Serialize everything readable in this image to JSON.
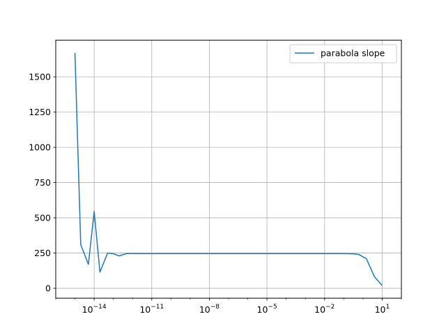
{
  "chart_data": {
    "type": "line",
    "title": "",
    "xlabel": "",
    "ylabel": "",
    "xscale": "log",
    "xlim": [
      1e-16,
      100.0
    ],
    "ylim": [
      -70,
      1760
    ],
    "grid": true,
    "legend_position": "upper right",
    "x_tick_labels": [
      {
        "value": 1e-14,
        "mantissa": "10",
        "exponent": "−14"
      },
      {
        "value": 1e-11,
        "mantissa": "10",
        "exponent": "−11"
      },
      {
        "value": 1e-08,
        "mantissa": "10",
        "exponent": "−8"
      },
      {
        "value": 1e-05,
        "mantissa": "10",
        "exponent": "−5"
      },
      {
        "value": 0.01,
        "mantissa": "10",
        "exponent": "−2"
      },
      {
        "value": 10,
        "mantissa": "10",
        "exponent": "1"
      }
    ],
    "y_tick_labels": [
      {
        "value": 0,
        "label": "0"
      },
      {
        "value": 250,
        "label": "250"
      },
      {
        "value": 500,
        "label": "500"
      },
      {
        "value": 750,
        "label": "750"
      },
      {
        "value": 1000,
        "label": "1000"
      },
      {
        "value": 1250,
        "label": "1250"
      },
      {
        "value": 1500,
        "label": "1500"
      }
    ],
    "series": [
      {
        "name": "parabola slope",
        "color": "#1f77b4",
        "x": [
          1e-15,
          2e-15,
          5e-15,
          1e-14,
          2e-14,
          5e-14,
          1e-13,
          2e-13,
          5e-13,
          1e-12,
          1e-11,
          1e-10,
          1e-09,
          1e-08,
          1e-07,
          1e-06,
          1e-05,
          0.0001,
          0.001,
          0.01,
          0.1,
          0.3,
          0.6,
          1.5,
          4,
          10
        ],
        "y": [
          1670,
          310,
          170,
          545,
          115,
          250,
          245,
          230,
          247,
          246,
          246,
          246,
          246,
          246,
          246,
          246,
          246,
          246,
          246,
          246,
          246,
          245,
          240,
          210,
          80,
          20
        ]
      }
    ]
  }
}
